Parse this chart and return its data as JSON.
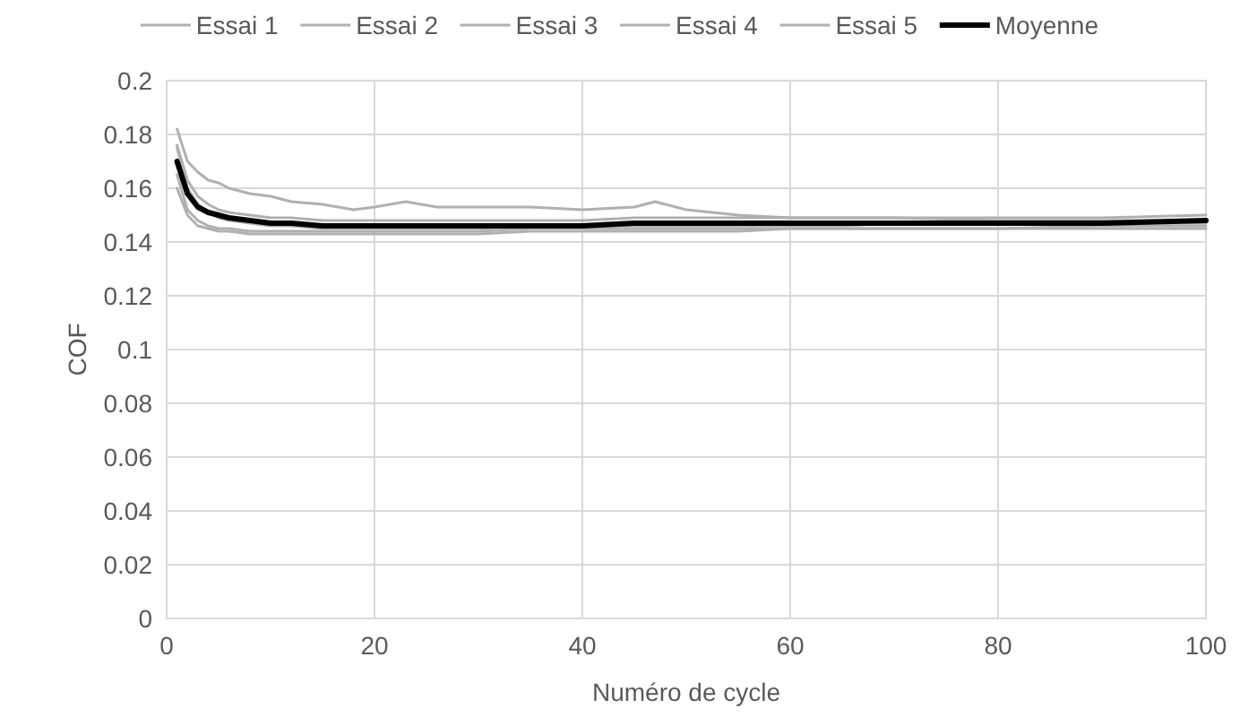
{
  "chart_data": {
    "type": "line",
    "xlabel": "Numéro de cycle",
    "ylabel": "COF",
    "x": [
      1,
      2,
      3,
      4,
      5,
      6,
      8,
      10,
      12,
      15,
      18,
      20,
      23,
      26,
      30,
      35,
      40,
      45,
      47,
      50,
      55,
      60,
      65,
      70,
      80,
      90,
      100
    ],
    "xlim": [
      0,
      100
    ],
    "xticks": [
      0,
      20,
      40,
      60,
      80,
      100
    ],
    "ylim": [
      0,
      0.2
    ],
    "yticks": [
      0,
      0.02,
      0.04,
      0.06,
      0.08,
      0.1,
      0.12,
      0.14,
      0.16,
      0.18,
      0.2
    ],
    "grid": true,
    "legend": "top",
    "line_style": "solid",
    "marker": "none",
    "series": [
      {
        "name": "Essai 1",
        "color": "#b0b0b0",
        "values": [
          0.182,
          0.17,
          0.166,
          0.163,
          0.162,
          0.16,
          0.158,
          0.157,
          0.155,
          0.154,
          0.152,
          0.153,
          0.155,
          0.153,
          0.153,
          0.153,
          0.152,
          0.153,
          0.155,
          0.152,
          0.15,
          0.149,
          0.149,
          0.149,
          0.148,
          0.148,
          0.148
        ]
      },
      {
        "name": "Essai 2",
        "color": "#b0b0b0",
        "values": [
          0.175,
          0.16,
          0.154,
          0.151,
          0.149,
          0.148,
          0.147,
          0.146,
          0.146,
          0.145,
          0.145,
          0.145,
          0.145,
          0.145,
          0.145,
          0.146,
          0.146,
          0.146,
          0.146,
          0.146,
          0.146,
          0.146,
          0.146,
          0.147,
          0.147,
          0.147,
          0.147
        ]
      },
      {
        "name": "Essai 3",
        "color": "#b0b0b0",
        "values": [
          0.165,
          0.152,
          0.148,
          0.146,
          0.145,
          0.145,
          0.144,
          0.144,
          0.144,
          0.144,
          0.144,
          0.144,
          0.144,
          0.144,
          0.144,
          0.145,
          0.145,
          0.145,
          0.145,
          0.145,
          0.145,
          0.145,
          0.145,
          0.145,
          0.145,
          0.145,
          0.145
        ]
      },
      {
        "name": "Essai 4",
        "color": "#b0b0b0",
        "values": [
          0.16,
          0.15,
          0.146,
          0.145,
          0.144,
          0.144,
          0.143,
          0.143,
          0.143,
          0.143,
          0.143,
          0.143,
          0.143,
          0.143,
          0.143,
          0.144,
          0.144,
          0.144,
          0.144,
          0.144,
          0.144,
          0.145,
          0.145,
          0.145,
          0.145,
          0.146,
          0.146
        ]
      },
      {
        "name": "Essai 5",
        "color": "#b0b0b0",
        "values": [
          0.176,
          0.163,
          0.157,
          0.154,
          0.152,
          0.151,
          0.15,
          0.149,
          0.149,
          0.148,
          0.148,
          0.148,
          0.148,
          0.148,
          0.148,
          0.148,
          0.148,
          0.149,
          0.149,
          0.149,
          0.149,
          0.149,
          0.149,
          0.149,
          0.149,
          0.149,
          0.15
        ]
      },
      {
        "name": "Moyenne",
        "color": "#000000",
        "values": [
          0.17,
          0.158,
          0.153,
          0.151,
          0.15,
          0.149,
          0.148,
          0.147,
          0.147,
          0.146,
          0.146,
          0.146,
          0.146,
          0.146,
          0.146,
          0.146,
          0.146,
          0.147,
          0.147,
          0.147,
          0.147,
          0.147,
          0.147,
          0.147,
          0.147,
          0.147,
          0.148
        ]
      }
    ]
  }
}
